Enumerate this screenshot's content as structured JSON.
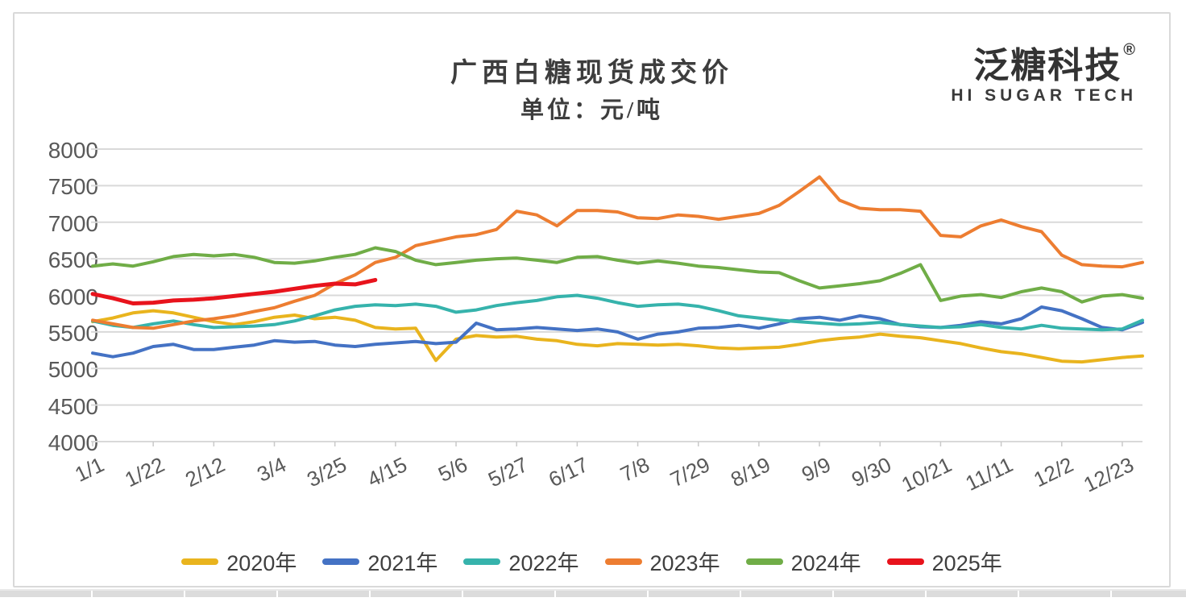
{
  "header": {
    "title": "广西白糖现货成交价",
    "subtitle": "单位：元/吨"
  },
  "logo": {
    "brand": "泛糖科技",
    "registered": "®",
    "tagline": "HI SUGAR TECH"
  },
  "chart_data": {
    "type": "line",
    "title": "广西白糖现货成交价",
    "unit_label": "单位：元/吨",
    "grid": "horizontal",
    "legend_position": "bottom",
    "ylim": [
      4000,
      8000
    ],
    "ytick_step": 500,
    "ytick_labels": [
      "8000",
      "7500",
      "7000",
      "6500",
      "6000",
      "5500",
      "5000",
      "4500",
      "4000"
    ],
    "xtick_labels": [
      "1/1",
      "1/22",
      "2/12",
      "3/4",
      "3/25",
      "4/15",
      "5/6",
      "5/27",
      "6/17",
      "7/8",
      "7/29",
      "8/19",
      "9/9",
      "9/30",
      "10/21",
      "11/11",
      "12/2",
      "12/23"
    ],
    "xtick_interval_days": 21,
    "x_axis_span_days": 364,
    "point_interval_days": 7,
    "axis_color": "#595959",
    "gridline_color": "#d9d9d9",
    "series": [
      {
        "name": "2020年",
        "color": "#e9b41e",
        "line_width": 4,
        "values": [
          5640,
          5690,
          5760,
          5790,
          5760,
          5700,
          5640,
          5600,
          5640,
          5700,
          5730,
          5680,
          5700,
          5660,
          5560,
          5540,
          5550,
          5110,
          5400,
          5450,
          5430,
          5440,
          5400,
          5380,
          5330,
          5310,
          5340,
          5330,
          5320,
          5330,
          5310,
          5280,
          5270,
          5280,
          5290,
          5330,
          5380,
          5410,
          5430,
          5470,
          5440,
          5420,
          5380,
          5340,
          5280,
          5230,
          5200,
          5150,
          5100,
          5090,
          5120,
          5150,
          5170
        ]
      },
      {
        "name": "2021年",
        "color": "#4472c4",
        "line_width": 4,
        "values": [
          5210,
          5160,
          5210,
          5300,
          5330,
          5260,
          5260,
          5290,
          5320,
          5380,
          5360,
          5370,
          5320,
          5300,
          5330,
          5350,
          5370,
          5340,
          5360,
          5620,
          5530,
          5540,
          5560,
          5540,
          5520,
          5540,
          5500,
          5400,
          5470,
          5500,
          5550,
          5560,
          5590,
          5550,
          5610,
          5680,
          5700,
          5660,
          5720,
          5680,
          5600,
          5570,
          5560,
          5590,
          5640,
          5610,
          5680,
          5840,
          5790,
          5680,
          5560,
          5530,
          5630
        ]
      },
      {
        "name": "2022年",
        "color": "#36b3ac",
        "line_width": 4,
        "values": [
          5650,
          5590,
          5560,
          5610,
          5650,
          5600,
          5560,
          5570,
          5580,
          5600,
          5650,
          5720,
          5800,
          5850,
          5870,
          5860,
          5880,
          5850,
          5770,
          5800,
          5860,
          5900,
          5930,
          5980,
          6000,
          5960,
          5900,
          5850,
          5870,
          5880,
          5850,
          5790,
          5720,
          5690,
          5660,
          5640,
          5620,
          5600,
          5610,
          5630,
          5600,
          5580,
          5560,
          5570,
          5600,
          5560,
          5540,
          5590,
          5550,
          5540,
          5530,
          5540,
          5660
        ]
      },
      {
        "name": "2023年",
        "color": "#ed7d31",
        "line_width": 4,
        "values": [
          5660,
          5610,
          5560,
          5550,
          5600,
          5650,
          5680,
          5720,
          5780,
          5830,
          5920,
          6000,
          6160,
          6280,
          6450,
          6520,
          6680,
          6740,
          6800,
          6830,
          6900,
          7150,
          7100,
          6950,
          7160,
          7160,
          7140,
          7060,
          7050,
          7100,
          7080,
          7040,
          7080,
          7120,
          7230,
          7420,
          7620,
          7300,
          7190,
          7170,
          7170,
          7150,
          6820,
          6800,
          6950,
          7030,
          6940,
          6870,
          6550,
          6420,
          6400,
          6390,
          6450
        ]
      },
      {
        "name": "2024年",
        "color": "#70ad47",
        "line_width": 4,
        "values": [
          6400,
          6430,
          6400,
          6460,
          6530,
          6560,
          6540,
          6560,
          6520,
          6450,
          6440,
          6470,
          6520,
          6560,
          6650,
          6600,
          6480,
          6420,
          6450,
          6480,
          6500,
          6510,
          6480,
          6450,
          6520,
          6530,
          6480,
          6440,
          6470,
          6440,
          6400,
          6380,
          6350,
          6320,
          6310,
          6200,
          6100,
          6130,
          6160,
          6200,
          6300,
          6420,
          5930,
          5990,
          6010,
          5970,
          6050,
          6100,
          6050,
          5910,
          5990,
          6010,
          5960
        ]
      },
      {
        "name": "2025年",
        "color": "#e8131c",
        "line_width": 5,
        "values": [
          6020,
          5960,
          5890,
          5900,
          5930,
          5940,
          5960,
          5990,
          6020,
          6050,
          6090,
          6130,
          6160,
          6150,
          6210
        ]
      }
    ]
  }
}
